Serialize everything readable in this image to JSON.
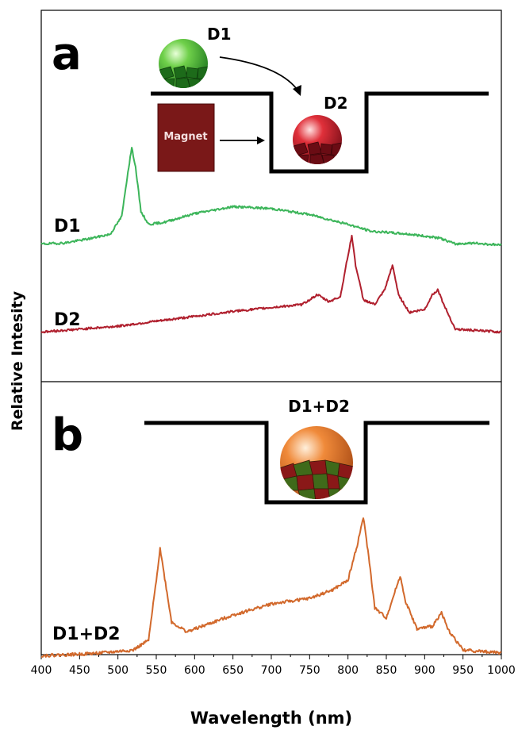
{
  "chart_data": {
    "type": "line",
    "xlabel": "Wavelength (nm)",
    "ylabel": "Relative Intesity",
    "xlim": [
      400,
      1000
    ],
    "x_ticks": [
      400,
      450,
      500,
      550,
      600,
      650,
      700,
      750,
      800,
      850,
      900,
      950,
      1000
    ],
    "y_ticks_shown": false,
    "grid": false,
    "colors": {
      "D1": "#3cb55a",
      "D2": "#b0202e",
      "D1+D2": "#d2692c"
    },
    "panels": [
      {
        "letter": "a",
        "inset": {
          "particle_1": "D1",
          "particle_2": "D2",
          "magnet_label": "Magnet"
        },
        "series": [
          {
            "name": "D1",
            "peaks_nm": [
              518
            ],
            "points": [
              [
                400,
                0.02
              ],
              [
                430,
                0.03
              ],
              [
                460,
                0.07
              ],
              [
                490,
                0.12
              ],
              [
                505,
                0.3
              ],
              [
                513,
                0.75
              ],
              [
                518,
                1.0
              ],
              [
                523,
                0.8
              ],
              [
                530,
                0.35
              ],
              [
                540,
                0.22
              ],
              [
                560,
                0.24
              ],
              [
                600,
                0.33
              ],
              [
                650,
                0.4
              ],
              [
                700,
                0.38
              ],
              [
                750,
                0.32
              ],
              [
                800,
                0.22
              ],
              [
                830,
                0.15
              ],
              [
                880,
                0.12
              ],
              [
                920,
                0.08
              ],
              [
                940,
                0.02
              ],
              [
                960,
                0.03
              ],
              [
                1000,
                0.01
              ]
            ]
          },
          {
            "name": "D2",
            "peaks_nm": [
              805,
              858,
              917
            ],
            "points": [
              [
                400,
                0.02
              ],
              [
                450,
                0.05
              ],
              [
                500,
                0.08
              ],
              [
                550,
                0.13
              ],
              [
                600,
                0.18
              ],
              [
                650,
                0.23
              ],
              [
                700,
                0.27
              ],
              [
                740,
                0.3
              ],
              [
                760,
                0.4
              ],
              [
                775,
                0.33
              ],
              [
                790,
                0.38
              ],
              [
                800,
                0.8
              ],
              [
                805,
                1.0
              ],
              [
                810,
                0.7
              ],
              [
                820,
                0.35
              ],
              [
                835,
                0.3
              ],
              [
                848,
                0.45
              ],
              [
                858,
                0.7
              ],
              [
                866,
                0.4
              ],
              [
                880,
                0.22
              ],
              [
                900,
                0.25
              ],
              [
                910,
                0.4
              ],
              [
                917,
                0.45
              ],
              [
                925,
                0.3
              ],
              [
                940,
                0.05
              ],
              [
                1000,
                0.02
              ]
            ]
          }
        ]
      },
      {
        "letter": "b",
        "inset": {
          "particle": "D1+D2"
        },
        "series": [
          {
            "name": "D1+D2",
            "peaks_nm": [
              555,
              820,
              868,
              922
            ],
            "points": [
              [
                400,
                0.01
              ],
              [
                450,
                0.02
              ],
              [
                480,
                0.03
              ],
              [
                520,
                0.05
              ],
              [
                540,
                0.12
              ],
              [
                550,
                0.55
              ],
              [
                555,
                0.78
              ],
              [
                560,
                0.6
              ],
              [
                570,
                0.25
              ],
              [
                590,
                0.18
              ],
              [
                620,
                0.24
              ],
              [
                650,
                0.3
              ],
              [
                700,
                0.38
              ],
              [
                750,
                0.42
              ],
              [
                780,
                0.48
              ],
              [
                800,
                0.55
              ],
              [
                812,
                0.8
              ],
              [
                820,
                1.0
              ],
              [
                827,
                0.72
              ],
              [
                835,
                0.35
              ],
              [
                850,
                0.28
              ],
              [
                862,
                0.48
              ],
              [
                868,
                0.58
              ],
              [
                875,
                0.4
              ],
              [
                890,
                0.2
              ],
              [
                910,
                0.22
              ],
              [
                922,
                0.32
              ],
              [
                930,
                0.2
              ],
              [
                950,
                0.05
              ],
              [
                1000,
                0.03
              ]
            ]
          }
        ]
      }
    ]
  }
}
